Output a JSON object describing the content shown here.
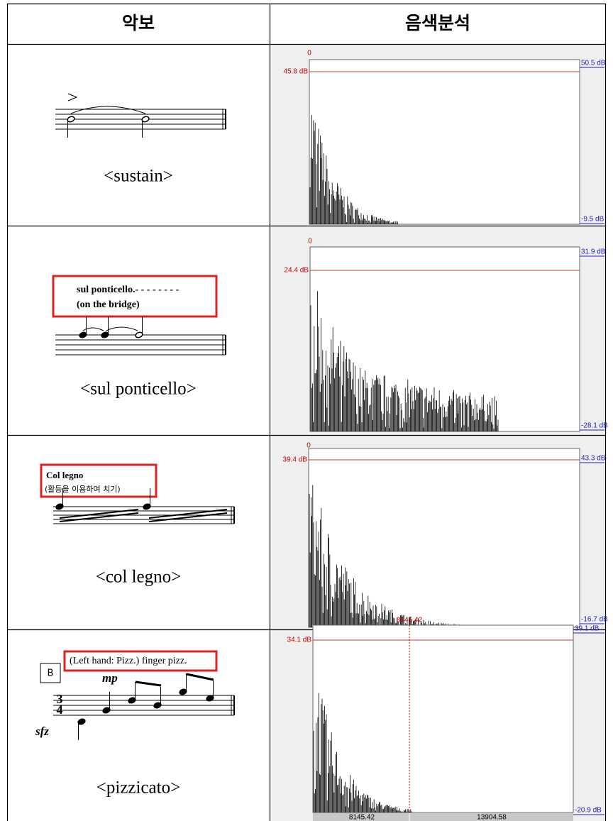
{
  "header": {
    "col1": "악보",
    "col2": "음색분석"
  },
  "rows": [
    {
      "score_caption": "<sustain>",
      "spectrum": {
        "top": "0",
        "left_db": "45.8 dB",
        "right_top_db": "50.5 dB",
        "right_bottom_db": "-9.5 dB"
      }
    },
    {
      "score_caption": "<sul ponticello>",
      "box_lines": [
        "sul ponticello.- - - - - - - -",
        "(on the bridge)"
      ],
      "spectrum": {
        "top": "0",
        "left_db": "24.4 dB",
        "right_top_db": "31.9 dB",
        "right_bottom_db": "-28.1 dB"
      }
    },
    {
      "score_caption": "<col legno>",
      "box_lines": [
        "Col legno",
        "(활등을 이용하여 치기)"
      ],
      "spectrum": {
        "top": "0",
        "left_db": "39.4 dB",
        "right_top_db": "43.3 dB",
        "right_bottom_db": "-16.7 dB"
      }
    },
    {
      "score_caption": "<pizzicato>",
      "box_lines": [
        "(Left hand: Pizz.) finger pizz."
      ],
      "rehearsal_mark": "B",
      "dynamics": [
        "mp",
        "sfz"
      ],
      "time_signature": [
        "3",
        "4"
      ],
      "spectrum": {
        "top": "8145.42",
        "left_db": "34.1 dB",
        "right_top_db": "39.1 dB",
        "right_bottom_db": "-20.9 dB",
        "bottom_labels": [
          "8145.42",
          "13904.58"
        ]
      }
    }
  ]
}
